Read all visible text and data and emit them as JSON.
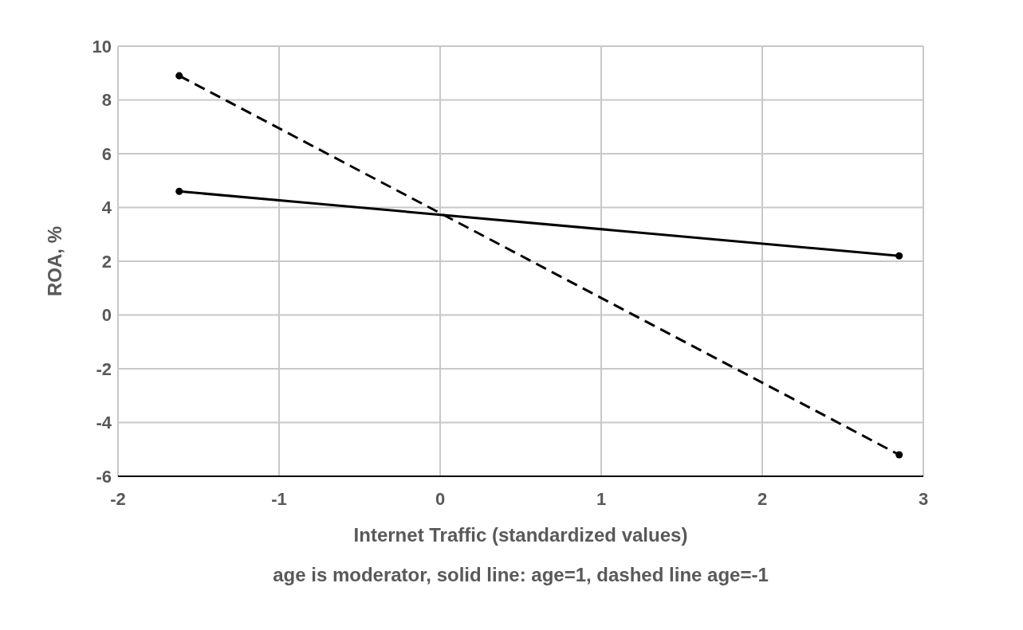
{
  "chart_data": {
    "type": "line",
    "xlabel": "Internet Traffic (standardized values)",
    "ylabel": "ROA, %",
    "annotations": [
      "age is moderator, solid line: age=1, dashed line age=-1"
    ],
    "x": [
      -1.62,
      2.85
    ],
    "series": [
      {
        "color": "#000000",
        "values": [
          4.6,
          2.2
        ],
        "line_style": "solid"
      },
      {
        "color": "#000000",
        "values": [
          8.9,
          -5.2
        ],
        "line_style": "dashed"
      }
    ],
    "xlim": [
      -2,
      3
    ],
    "xticks": [
      -2,
      -1,
      0,
      1,
      2,
      3
    ],
    "ylim": [
      -6,
      10
    ],
    "yticks": [
      -6,
      -4,
      -2,
      0,
      2,
      4,
      6,
      8,
      10
    ],
    "grid": true,
    "marker": "circle"
  }
}
